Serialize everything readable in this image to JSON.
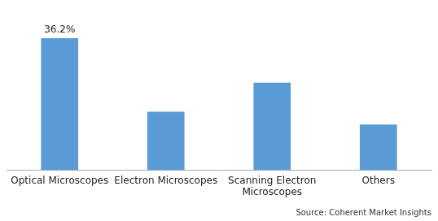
{
  "chart_data": {
    "type": "bar",
    "categories": [
      "Optical Microscopes",
      "Electron Microscopes",
      "Scanning Electron\nMicroscopes",
      "Others"
    ],
    "values": [
      36.2,
      16.0,
      24.0,
      12.5
    ],
    "color": "#5B9BD5",
    "ylim": [
      0,
      44
    ],
    "grid": false,
    "tick_labels": "x",
    "annotations": [
      {
        "text": "36.2%",
        "x": "Optical Microscopes",
        "y": 36.2
      }
    ],
    "source": "Source: Coherent Market Insights"
  }
}
